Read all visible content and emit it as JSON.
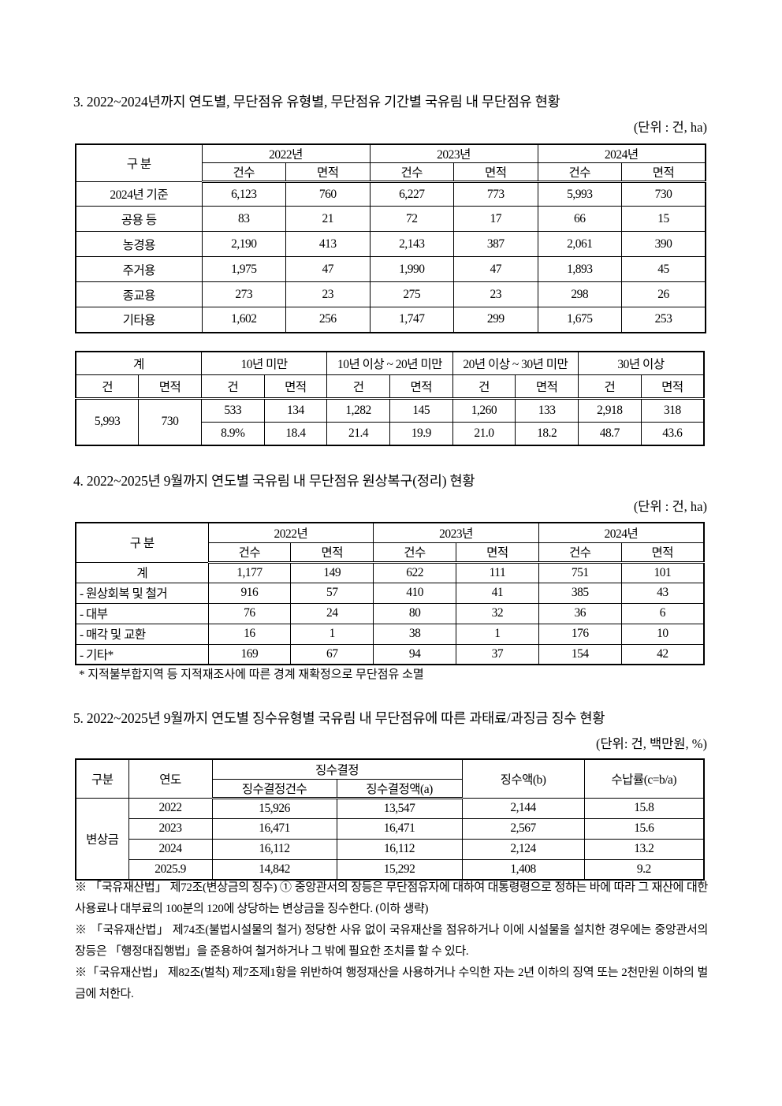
{
  "section3": {
    "title": "3. 2022~2024년까지 연도별, 무단점유 유형별, 무단점유 기간별 국유림 내 무단점유 현황",
    "unit": "(단위 : 건, ha)",
    "table1": {
      "corner": "구  분",
      "years": [
        "2022년",
        "2023년",
        "2024년"
      ],
      "sub": [
        "건수",
        "면적"
      ],
      "rows": [
        {
          "label": "2024년 기준",
          "values": [
            "6,123",
            "760",
            "6,227",
            "773",
            "5,993",
            "730"
          ]
        },
        {
          "label": "공용 등",
          "values": [
            "83",
            "21",
            "72",
            "17",
            "66",
            "15"
          ]
        },
        {
          "label": "농경용",
          "values": [
            "2,190",
            "413",
            "2,143",
            "387",
            "2,061",
            "390"
          ]
        },
        {
          "label": "주거용",
          "values": [
            "1,975",
            "47",
            "1,990",
            "47",
            "1,893",
            "45"
          ]
        },
        {
          "label": "종교용",
          "values": [
            "273",
            "23",
            "275",
            "23",
            "298",
            "26"
          ]
        },
        {
          "label": "기타용",
          "values": [
            "1,602",
            "256",
            "1,747",
            "299",
            "1,675",
            "253"
          ]
        }
      ]
    },
    "table2": {
      "groups": [
        "계",
        "10년 미만",
        "10년 이상 ~ 20년 미만",
        "20년 이상 ~ 30년 미만",
        "30년 이상"
      ],
      "sub": [
        "건",
        "면적"
      ],
      "total": {
        "count": "5,993",
        "area": "730"
      },
      "counts": [
        "533",
        "134",
        "1,282",
        "145",
        "1,260",
        "133",
        "2,918",
        "318"
      ],
      "ratios": [
        "8.9%",
        "18.4",
        "21.4",
        "19.9",
        "21.0",
        "18.2",
        "48.7",
        "43.6"
      ]
    }
  },
  "section4": {
    "title": "4. 2022~2025년 9월까지 연도별 국유림 내 무단점유 원상복구(정리) 현황",
    "unit": "(단위 : 건, ha)",
    "table": {
      "corner": "구  분",
      "years": [
        "2022년",
        "2023년",
        "2024년"
      ],
      "sub": [
        "건수",
        "면적"
      ],
      "rows": [
        {
          "label": "계",
          "values": [
            "1,177",
            "149",
            "622",
            "111",
            "751",
            "101"
          ]
        },
        {
          "label": " - 원상회복 및 철거",
          "values": [
            "916",
            "57",
            "410",
            "41",
            "385",
            "43"
          ]
        },
        {
          "label": " - 대부",
          "values": [
            "76",
            "24",
            "80",
            "32",
            "36",
            "6"
          ]
        },
        {
          "label": " - 매각 및 교환",
          "values": [
            "16",
            "1",
            "38",
            "1",
            "176",
            "10"
          ]
        },
        {
          "label": " - 기타*",
          "values": [
            "169",
            "67",
            "94",
            "37",
            "154",
            "42"
          ]
        }
      ]
    },
    "footnote": "* 지적불부합지역 등 지적재조사에 따른 경계 재확정으로 무단점유 소멸"
  },
  "section5": {
    "title": "5. 2022~2025년 9월까지 연도별 징수유형별 국유림 내 무단점유에 따른 과태료/과징금 징수 현황",
    "unit": "(단위: 건, 백만원, %)",
    "table": {
      "headers": {
        "category": "구분",
        "year": "연도",
        "decision": "징수결정",
        "decision_count": "징수결정건수",
        "decision_amount": "징수결정액(a)",
        "collected": "징수액(b)",
        "rate": "수납률(c=b/a)"
      },
      "category_label": "변상금",
      "rows": [
        {
          "year": "2022",
          "values": [
            "15,926",
            "13,547",
            "2,144",
            "15.8"
          ]
        },
        {
          "year": "2023",
          "values": [
            "16,471",
            "16,471",
            "2,567",
            "15.6"
          ]
        },
        {
          "year": "2024",
          "values": [
            "16,112",
            "16,112",
            "2,124",
            "13.2"
          ]
        },
        {
          "year": "2025.9",
          "values": [
            "14,842",
            "15,292",
            "1,408",
            "9.2"
          ]
        }
      ]
    },
    "notes": [
      "※ 「국유재산법」 제72조(변상금의 징수) ① 중앙관서의 장등은 무단점유자에 대하여 대통령령으로 정하는 바에 따라 그 재산에 대한 사용료나 대부료의 100분의 120에 상당하는 변상금을 징수한다. (이하 생략)",
      "※ 「국유재산법」 제74조(불법시설물의 철거) 정당한 사유 없이 국유재산을 점유하거나 이에 시설물을 설치한 경우에는 중앙관서의 장등은 「행정대집행법」을 준용하여 철거하거나 그 밖에 필요한 조치를 할 수 있다.",
      "※「국유재산법」 제82조(벌칙) 제7조제1항을 위반하여 행정재산을 사용하거나 수익한 자는 2년 이하의 징역 또는 2천만원 이하의 벌금에 처한다."
    ]
  }
}
